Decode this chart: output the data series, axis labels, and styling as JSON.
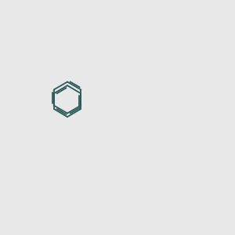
{
  "background_color": "#e8e8e8",
  "bond_color": "#2d5a5a",
  "N_color": "#0000ff",
  "O_color": "#ff0000",
  "S_color": "#cccc00",
  "lw": 1.3,
  "figsize": [
    3.0,
    3.0
  ],
  "dpi": 100
}
